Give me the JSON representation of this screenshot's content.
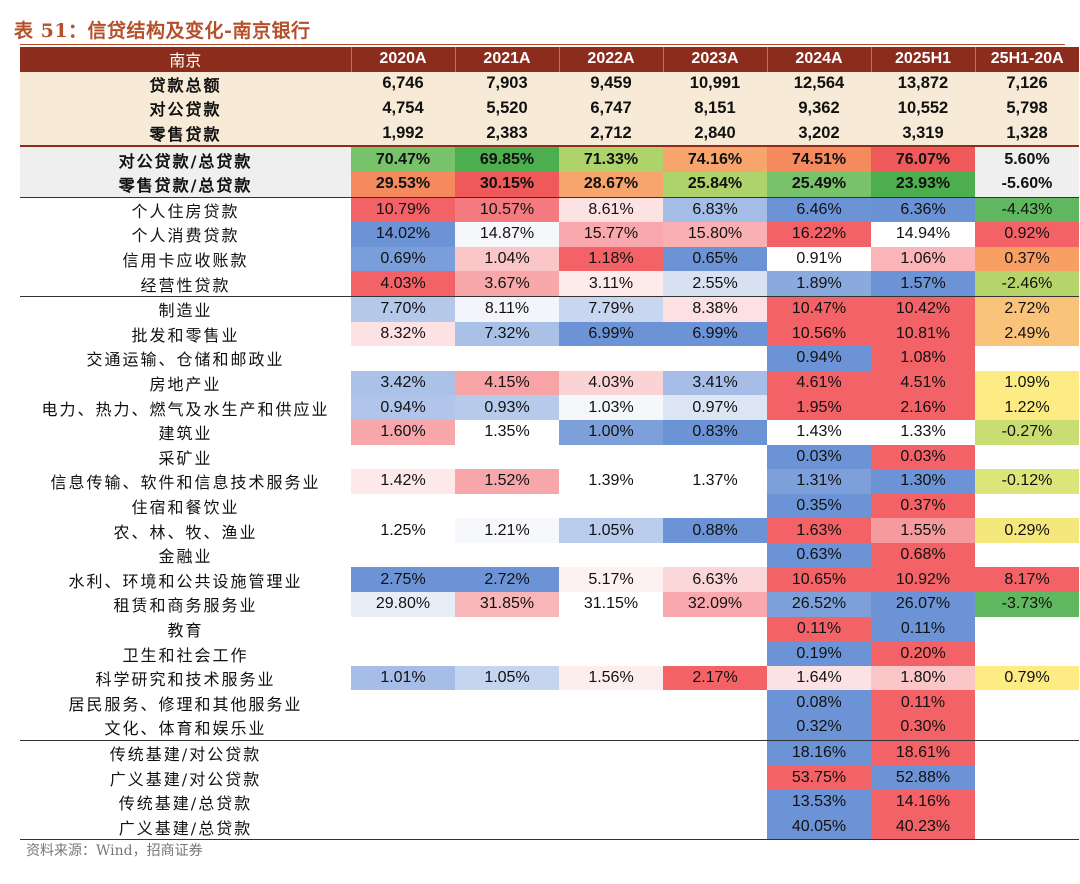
{
  "title": "表 51：信贷结构及变化-南京银行",
  "source": "资料来源：Wind，招商证券",
  "header": [
    "南京",
    "2020A",
    "2021A",
    "2022A",
    "2023A",
    "2024A",
    "2025H1",
    "25H1-20A"
  ],
  "rows": [
    {
      "label": "贷款总额",
      "group": "sum",
      "cells": [
        {
          "v": "6,746"
        },
        {
          "v": "7,903"
        },
        {
          "v": "9,459"
        },
        {
          "v": "10,991"
        },
        {
          "v": "12,564"
        },
        {
          "v": "13,872"
        },
        {
          "v": "7,126"
        }
      ]
    },
    {
      "label": "对公贷款",
      "group": "sum",
      "cells": [
        {
          "v": "4,754"
        },
        {
          "v": "5,520"
        },
        {
          "v": "6,747"
        },
        {
          "v": "8,151"
        },
        {
          "v": "9,362"
        },
        {
          "v": "10,552"
        },
        {
          "v": "5,798"
        }
      ]
    },
    {
      "label": "零售贷款",
      "group": "sum",
      "cells": [
        {
          "v": "1,992"
        },
        {
          "v": "2,383"
        },
        {
          "v": "2,712"
        },
        {
          "v": "2,840"
        },
        {
          "v": "3,202"
        },
        {
          "v": "3,319"
        },
        {
          "v": "1,328"
        }
      ]
    },
    {
      "label": "对公贷款/总贷款",
      "group": "ratio",
      "sep": true,
      "cells": [
        {
          "v": "70.47%",
          "c": "#78c36a"
        },
        {
          "v": "69.85%",
          "c": "#4cae4c"
        },
        {
          "v": "71.33%",
          "c": "#aed36a"
        },
        {
          "v": "74.16%",
          "c": "#f7a56c"
        },
        {
          "v": "74.51%",
          "c": "#f48a5e"
        },
        {
          "v": "76.07%",
          "c": "#f0595a"
        },
        {
          "v": "5.60%"
        }
      ]
    },
    {
      "label": "零售贷款/总贷款",
      "group": "ratio",
      "cells": [
        {
          "v": "29.53%",
          "c": "#f48a5e"
        },
        {
          "v": "30.15%",
          "c": "#f0595a"
        },
        {
          "v": "28.67%",
          "c": "#f7a56c"
        },
        {
          "v": "25.84%",
          "c": "#aed36a"
        },
        {
          "v": "25.49%",
          "c": "#78c36a"
        },
        {
          "v": "23.93%",
          "c": "#4cae4c"
        },
        {
          "v": "-5.60%"
        }
      ]
    },
    {
      "label": "个人住房贷款",
      "sep": true,
      "cells": [
        {
          "v": "10.79%",
          "c": "#f26266"
        },
        {
          "v": "10.57%",
          "c": "#f37a7e"
        },
        {
          "v": "8.61%",
          "c": "#fde2e4"
        },
        {
          "v": "6.83%",
          "c": "#a4bde6"
        },
        {
          "v": "6.46%",
          "c": "#6c93d5"
        },
        {
          "v": "6.36%",
          "c": "#6a91d4"
        },
        {
          "v": "-4.43%",
          "c": "#5fb85f"
        }
      ]
    },
    {
      "label": "个人消费贷款",
      "cells": [
        {
          "v": "14.02%",
          "c": "#6c93d5"
        },
        {
          "v": "14.87%",
          "c": "#f6f7fb"
        },
        {
          "v": "15.77%",
          "c": "#f9a9ad"
        },
        {
          "v": "15.80%",
          "c": "#f9b0b3"
        },
        {
          "v": "16.22%",
          "c": "#f26266"
        },
        {
          "v": "14.94%",
          "c": "#ffffff"
        },
        {
          "v": "0.92%",
          "c": "#f26266"
        }
      ]
    },
    {
      "label": "信用卡应收账款",
      "cells": [
        {
          "v": "0.69%",
          "c": "#7a9ed9"
        },
        {
          "v": "1.04%",
          "c": "#fbc6c8"
        },
        {
          "v": "1.18%",
          "c": "#f26266"
        },
        {
          "v": "0.65%",
          "c": "#6c93d5"
        },
        {
          "v": "0.91%",
          "c": "#ffffff"
        },
        {
          "v": "1.06%",
          "c": "#fbb5b8"
        },
        {
          "v": "0.37%",
          "c": "#f8a064"
        }
      ]
    },
    {
      "label": "经营性贷款",
      "cells": [
        {
          "v": "4.03%",
          "c": "#f26266"
        },
        {
          "v": "3.67%",
          "c": "#f8a8ab"
        },
        {
          "v": "3.11%",
          "c": "#fdeaea"
        },
        {
          "v": "2.55%",
          "c": "#d7e1f2"
        },
        {
          "v": "1.89%",
          "c": "#8aaade"
        },
        {
          "v": "1.57%",
          "c": "#6c93d5"
        },
        {
          "v": "-2.46%",
          "c": "#b5d56a"
        }
      ]
    },
    {
      "label": "制造业",
      "sep": true,
      "cells": [
        {
          "v": "7.70%",
          "c": "#b4c8ea"
        },
        {
          "v": "8.11%",
          "c": "#f3f5fa"
        },
        {
          "v": "7.79%",
          "c": "#c8d6ef"
        },
        {
          "v": "8.38%",
          "c": "#fce0e2"
        },
        {
          "v": "10.47%",
          "c": "#f26266"
        },
        {
          "v": "10.42%",
          "c": "#f26266"
        },
        {
          "v": "2.72%",
          "c": "#fac37a"
        }
      ]
    },
    {
      "label": "批发和零售业",
      "cells": [
        {
          "v": "8.32%",
          "c": "#fde2e4"
        },
        {
          "v": "7.32%",
          "c": "#a9c0e7"
        },
        {
          "v": "6.99%",
          "c": "#6c93d5"
        },
        {
          "v": "6.99%",
          "c": "#6c93d5"
        },
        {
          "v": "10.56%",
          "c": "#f26266"
        },
        {
          "v": "10.81%",
          "c": "#f26266"
        },
        {
          "v": "2.49%",
          "c": "#fac37a"
        }
      ]
    },
    {
      "label": "交通运输、仓储和邮政业",
      "cells": [
        {
          "v": ""
        },
        {
          "v": ""
        },
        {
          "v": ""
        },
        {
          "v": ""
        },
        {
          "v": "0.94%",
          "c": "#6c93d5"
        },
        {
          "v": "1.08%",
          "c": "#f26266"
        },
        {
          "v": ""
        }
      ]
    },
    {
      "label": "房地产业",
      "cells": [
        {
          "v": "3.42%",
          "c": "#aac1e8"
        },
        {
          "v": "4.15%",
          "c": "#f8a3a6"
        },
        {
          "v": "4.03%",
          "c": "#fcd3d5"
        },
        {
          "v": "3.41%",
          "c": "#a6bee7"
        },
        {
          "v": "4.61%",
          "c": "#f26266"
        },
        {
          "v": "4.51%",
          "c": "#f26266"
        },
        {
          "v": "1.09%",
          "c": "#fdeb84"
        }
      ]
    },
    {
      "label": "电力、热力、燃气及水生产和供应业",
      "cells": [
        {
          "v": "0.94%",
          "c": "#b0c5e9"
        },
        {
          "v": "0.93%",
          "c": "#b6caeb"
        },
        {
          "v": "1.03%",
          "c": "#f5f7fb"
        },
        {
          "v": "0.97%",
          "c": "#dce5f4"
        },
        {
          "v": "1.95%",
          "c": "#f26266"
        },
        {
          "v": "2.16%",
          "c": "#f26266"
        },
        {
          "v": "1.22%",
          "c": "#fdeb84"
        }
      ]
    },
    {
      "label": "建筑业",
      "cells": [
        {
          "v": "1.60%",
          "c": "#f7a7aa"
        },
        {
          "v": "1.35%",
          "c": "#ffffff"
        },
        {
          "v": "1.00%",
          "c": "#7ea0da"
        },
        {
          "v": "0.83%",
          "c": "#6c93d5"
        },
        {
          "v": "1.43%",
          "c": "#ffffff"
        },
        {
          "v": "1.33%",
          "c": "#ffffff"
        },
        {
          "v": "-0.27%",
          "c": "#c9dd72"
        }
      ]
    },
    {
      "label": "采矿业",
      "cells": [
        {
          "v": ""
        },
        {
          "v": ""
        },
        {
          "v": ""
        },
        {
          "v": ""
        },
        {
          "v": "0.03%",
          "c": "#6c93d5"
        },
        {
          "v": "0.03%",
          "c": "#f26266"
        },
        {
          "v": ""
        }
      ]
    },
    {
      "label": "信息传输、软件和信息技术服务业",
      "cells": [
        {
          "v": "1.42%",
          "c": "#fde9ea"
        },
        {
          "v": "1.52%",
          "c": "#f7a7aa"
        },
        {
          "v": "1.39%",
          "c": "#ffffff"
        },
        {
          "v": "1.37%",
          "c": "#ffffff"
        },
        {
          "v": "1.31%",
          "c": "#7ea0da"
        },
        {
          "v": "1.30%",
          "c": "#6c93d5"
        },
        {
          "v": "-0.12%",
          "c": "#dce57a"
        }
      ]
    },
    {
      "label": "住宿和餐饮业",
      "cells": [
        {
          "v": ""
        },
        {
          "v": ""
        },
        {
          "v": ""
        },
        {
          "v": ""
        },
        {
          "v": "0.35%",
          "c": "#6c93d5"
        },
        {
          "v": "0.37%",
          "c": "#f26266"
        },
        {
          "v": ""
        }
      ]
    },
    {
      "label": "农、林、牧、渔业",
      "cells": [
        {
          "v": "1.25%",
          "c": "#ffffff"
        },
        {
          "v": "1.21%",
          "c": "#f7f8fc"
        },
        {
          "v": "1.05%",
          "c": "#b9ccec"
        },
        {
          "v": "0.88%",
          "c": "#6c93d5"
        },
        {
          "v": "1.63%",
          "c": "#f26266"
        },
        {
          "v": "1.55%",
          "c": "#f59a9d"
        },
        {
          "v": "0.29%",
          "c": "#f4e77c"
        }
      ]
    },
    {
      "label": "金融业",
      "cells": [
        {
          "v": ""
        },
        {
          "v": ""
        },
        {
          "v": ""
        },
        {
          "v": ""
        },
        {
          "v": "0.63%",
          "c": "#6c93d5"
        },
        {
          "v": "0.68%",
          "c": "#f26266"
        },
        {
          "v": ""
        }
      ]
    },
    {
      "label": "水利、环境和公共设施管理业",
      "cells": [
        {
          "v": "2.75%",
          "c": "#6c93d5"
        },
        {
          "v": "2.72%",
          "c": "#6c93d5"
        },
        {
          "v": "5.17%",
          "c": "#fdf1f2"
        },
        {
          "v": "6.63%",
          "c": "#fbd6d8"
        },
        {
          "v": "10.65%",
          "c": "#f26266"
        },
        {
          "v": "10.92%",
          "c": "#f26266"
        },
        {
          "v": "8.17%",
          "c": "#f26266"
        }
      ]
    },
    {
      "label": "租赁和商务服务业",
      "cells": [
        {
          "v": "29.80%",
          "c": "#e8eef8"
        },
        {
          "v": "31.85%",
          "c": "#f9b6b9"
        },
        {
          "v": "31.15%",
          "c": "#ffffff"
        },
        {
          "v": "32.09%",
          "c": "#f9a9ad"
        },
        {
          "v": "26.52%",
          "c": "#7ea0da"
        },
        {
          "v": "26.07%",
          "c": "#6c93d5"
        },
        {
          "v": "-3.73%",
          "c": "#5fb85f"
        }
      ]
    },
    {
      "label": "教育",
      "cells": [
        {
          "v": ""
        },
        {
          "v": ""
        },
        {
          "v": ""
        },
        {
          "v": ""
        },
        {
          "v": "0.11%",
          "c": "#f26266"
        },
        {
          "v": "0.11%",
          "c": "#6c93d5"
        },
        {
          "v": ""
        }
      ]
    },
    {
      "label": "卫生和社会工作",
      "cells": [
        {
          "v": ""
        },
        {
          "v": ""
        },
        {
          "v": ""
        },
        {
          "v": ""
        },
        {
          "v": "0.19%",
          "c": "#6c93d5"
        },
        {
          "v": "0.20%",
          "c": "#f26266"
        },
        {
          "v": ""
        }
      ]
    },
    {
      "label": "科学研究和技术服务业",
      "cells": [
        {
          "v": "1.01%",
          "c": "#a6bee7"
        },
        {
          "v": "1.05%",
          "c": "#c5d4ef"
        },
        {
          "v": "1.56%",
          "c": "#fdeeee"
        },
        {
          "v": "2.17%",
          "c": "#f26266"
        },
        {
          "v": "1.64%",
          "c": "#fde2e4"
        },
        {
          "v": "1.80%",
          "c": "#fbc6c8"
        },
        {
          "v": "0.79%",
          "c": "#fdeb84"
        }
      ]
    },
    {
      "label": "居民服务、修理和其他服务业",
      "cells": [
        {
          "v": ""
        },
        {
          "v": ""
        },
        {
          "v": ""
        },
        {
          "v": ""
        },
        {
          "v": "0.08%",
          "c": "#6c93d5"
        },
        {
          "v": "0.11%",
          "c": "#f26266"
        },
        {
          "v": ""
        }
      ]
    },
    {
      "label": "文化、体育和娱乐业",
      "cells": [
        {
          "v": ""
        },
        {
          "v": ""
        },
        {
          "v": ""
        },
        {
          "v": ""
        },
        {
          "v": "0.32%",
          "c": "#6c93d5"
        },
        {
          "v": "0.30%",
          "c": "#f26266"
        },
        {
          "v": ""
        }
      ]
    },
    {
      "label": "传统基建/对公贷款",
      "sep": true,
      "cells": [
        {
          "v": ""
        },
        {
          "v": ""
        },
        {
          "v": ""
        },
        {
          "v": ""
        },
        {
          "v": "18.16%",
          "c": "#6c93d5"
        },
        {
          "v": "18.61%",
          "c": "#f26266"
        },
        {
          "v": ""
        }
      ]
    },
    {
      "label": "广义基建/对公贷款",
      "cells": [
        {
          "v": ""
        },
        {
          "v": ""
        },
        {
          "v": ""
        },
        {
          "v": ""
        },
        {
          "v": "53.75%",
          "c": "#f26266"
        },
        {
          "v": "52.88%",
          "c": "#6c93d5"
        },
        {
          "v": ""
        }
      ]
    },
    {
      "label": "传统基建/总贷款",
      "cells": [
        {
          "v": ""
        },
        {
          "v": ""
        },
        {
          "v": ""
        },
        {
          "v": ""
        },
        {
          "v": "13.53%",
          "c": "#6c93d5"
        },
        {
          "v": "14.16%",
          "c": "#f26266"
        },
        {
          "v": ""
        }
      ]
    },
    {
      "label": "广义基建/总贷款",
      "last": true,
      "cells": [
        {
          "v": ""
        },
        {
          "v": ""
        },
        {
          "v": ""
        },
        {
          "v": ""
        },
        {
          "v": "40.05%",
          "c": "#6c93d5"
        },
        {
          "v": "40.23%",
          "c": "#f26266"
        },
        {
          "v": ""
        }
      ]
    }
  ]
}
